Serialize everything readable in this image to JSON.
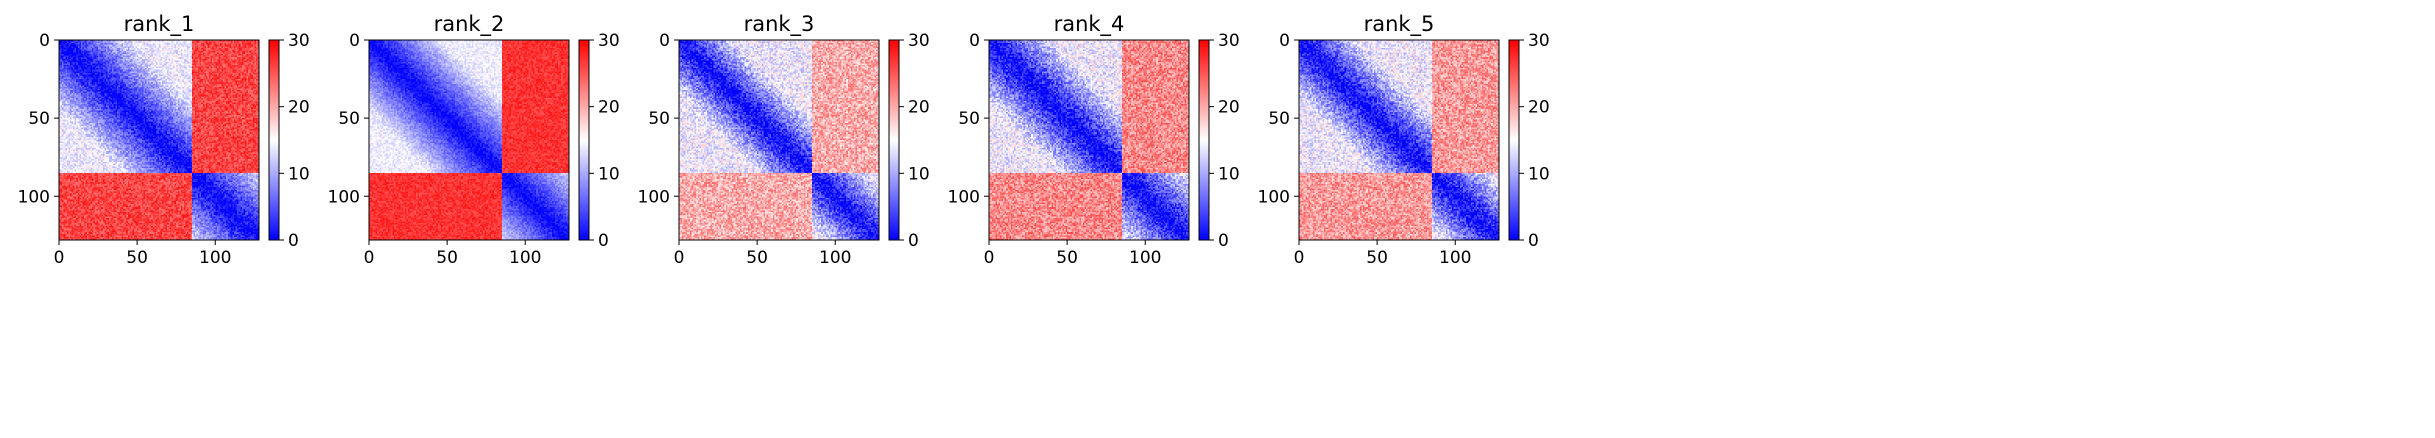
{
  "figure": {
    "colormap": "bwr",
    "colors": {
      "low": "#0000ff",
      "mid": "#ffffff",
      "high": "#ff0000"
    }
  },
  "chart_data": [
    {
      "type": "heatmap",
      "title": "rank_1",
      "matrix_size": 128,
      "x_ticks": [
        0,
        50,
        100
      ],
      "y_ticks": [
        0,
        50,
        100
      ],
      "xlim": [
        0,
        128
      ],
      "ylim": [
        128,
        0
      ],
      "colorbar": {
        "range": [
          0,
          30
        ],
        "ticks": [
          0,
          10,
          20,
          30
        ]
      },
      "pattern": {
        "domain_boundary": 85,
        "gradient_scale": 40,
        "block_value": 26,
        "noise": 3
      }
    },
    {
      "type": "heatmap",
      "title": "rank_2",
      "matrix_size": 128,
      "x_ticks": [
        0,
        50,
        100
      ],
      "y_ticks": [
        0,
        50,
        100
      ],
      "xlim": [
        0,
        128
      ],
      "ylim": [
        128,
        0
      ],
      "colorbar": {
        "range": [
          0,
          30
        ],
        "ticks": [
          0,
          10,
          20,
          30
        ]
      },
      "pattern": {
        "domain_boundary": 85,
        "gradient_scale": 40,
        "block_value": 27,
        "noise": 2
      }
    },
    {
      "type": "heatmap",
      "title": "rank_3",
      "matrix_size": 128,
      "x_ticks": [
        0,
        50,
        100
      ],
      "y_ticks": [
        0,
        50,
        100
      ],
      "xlim": [
        0,
        128
      ],
      "ylim": [
        128,
        0
      ],
      "colorbar": {
        "range": [
          0,
          30
        ],
        "ticks": [
          0,
          10,
          20,
          30
        ]
      },
      "pattern": {
        "domain_boundary": 85,
        "gradient_scale": 30,
        "block_value": 20,
        "noise": 4
      }
    },
    {
      "type": "heatmap",
      "title": "rank_4",
      "matrix_size": 128,
      "x_ticks": [
        0,
        50,
        100
      ],
      "y_ticks": [
        0,
        50,
        100
      ],
      "xlim": [
        0,
        128
      ],
      "ylim": [
        128,
        0
      ],
      "colorbar": {
        "range": [
          0,
          30
        ],
        "ticks": [
          0,
          10,
          20,
          30
        ]
      },
      "pattern": {
        "domain_boundary": 85,
        "gradient_scale": 35,
        "block_value": 22,
        "noise": 4
      }
    },
    {
      "type": "heatmap",
      "title": "rank_5",
      "matrix_size": 128,
      "x_ticks": [
        0,
        50,
        100
      ],
      "y_ticks": [
        0,
        50,
        100
      ],
      "xlim": [
        0,
        128
      ],
      "ylim": [
        128,
        0
      ],
      "colorbar": {
        "range": [
          0,
          30
        ],
        "ticks": [
          0,
          10,
          20,
          30
        ]
      },
      "pattern": {
        "domain_boundary": 85,
        "gradient_scale": 32,
        "block_value": 21,
        "noise": 4
      }
    }
  ]
}
